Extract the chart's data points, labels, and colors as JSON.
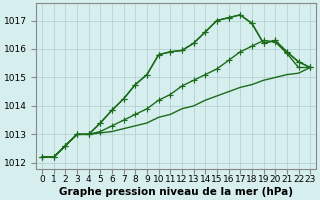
{
  "title": "Graphe pression niveau de la mer (hPa)",
  "background_color": "#d6eeee",
  "grid_color": "#b0cccc",
  "line_color": "#1a6b1a",
  "x_labels": [
    "0",
    "1",
    "2",
    "3",
    "4",
    "5",
    "6",
    "7",
    "8",
    "9",
    "10",
    "11",
    "12",
    "13",
    "14",
    "15",
    "16",
    "17",
    "18",
    "19",
    "20",
    "21",
    "22",
    "23"
  ],
  "ylim": [
    1011.8,
    1017.6
  ],
  "yticks": [
    1012,
    1013,
    1014,
    1015,
    1016,
    1017
  ],
  "series1": [
    1012.2,
    1012.2,
    1012.6,
    1013.0,
    1013.0,
    1013.4,
    1013.85,
    1014.25,
    1014.75,
    1015.1,
    1015.8,
    1015.9,
    1015.95,
    1016.2,
    1016.6,
    1017.0,
    1017.1,
    1017.2,
    1016.9,
    1016.2,
    1016.3,
    1015.9,
    1015.55,
    1015.35
  ],
  "series2": [
    1012.2,
    1012.2,
    1012.6,
    1013.0,
    1013.0,
    1013.1,
    1013.3,
    1013.5,
    1013.7,
    1013.9,
    1014.2,
    1014.4,
    1014.7,
    1014.9,
    1015.1,
    1015.3,
    1015.6,
    1015.9,
    1016.1,
    1016.3,
    1016.25,
    1015.85,
    1015.35,
    1015.35
  ],
  "series3": [
    1012.2,
    1012.2,
    1012.6,
    1013.0,
    1013.0,
    1013.05,
    1013.1,
    1013.2,
    1013.3,
    1013.4,
    1013.6,
    1013.7,
    1013.9,
    1014.0,
    1014.2,
    1014.35,
    1014.5,
    1014.65,
    1014.75,
    1014.9,
    1015.0,
    1015.1,
    1015.15,
    1015.35
  ],
  "marker": "+",
  "marker_size": 4,
  "linewidth": 1.0,
  "spine_color": "#888888",
  "tick_color": "#333333",
  "label_fontsize": 6.5,
  "xlabel_fontsize": 7.5,
  "ylabel_fontsize": 6.5
}
